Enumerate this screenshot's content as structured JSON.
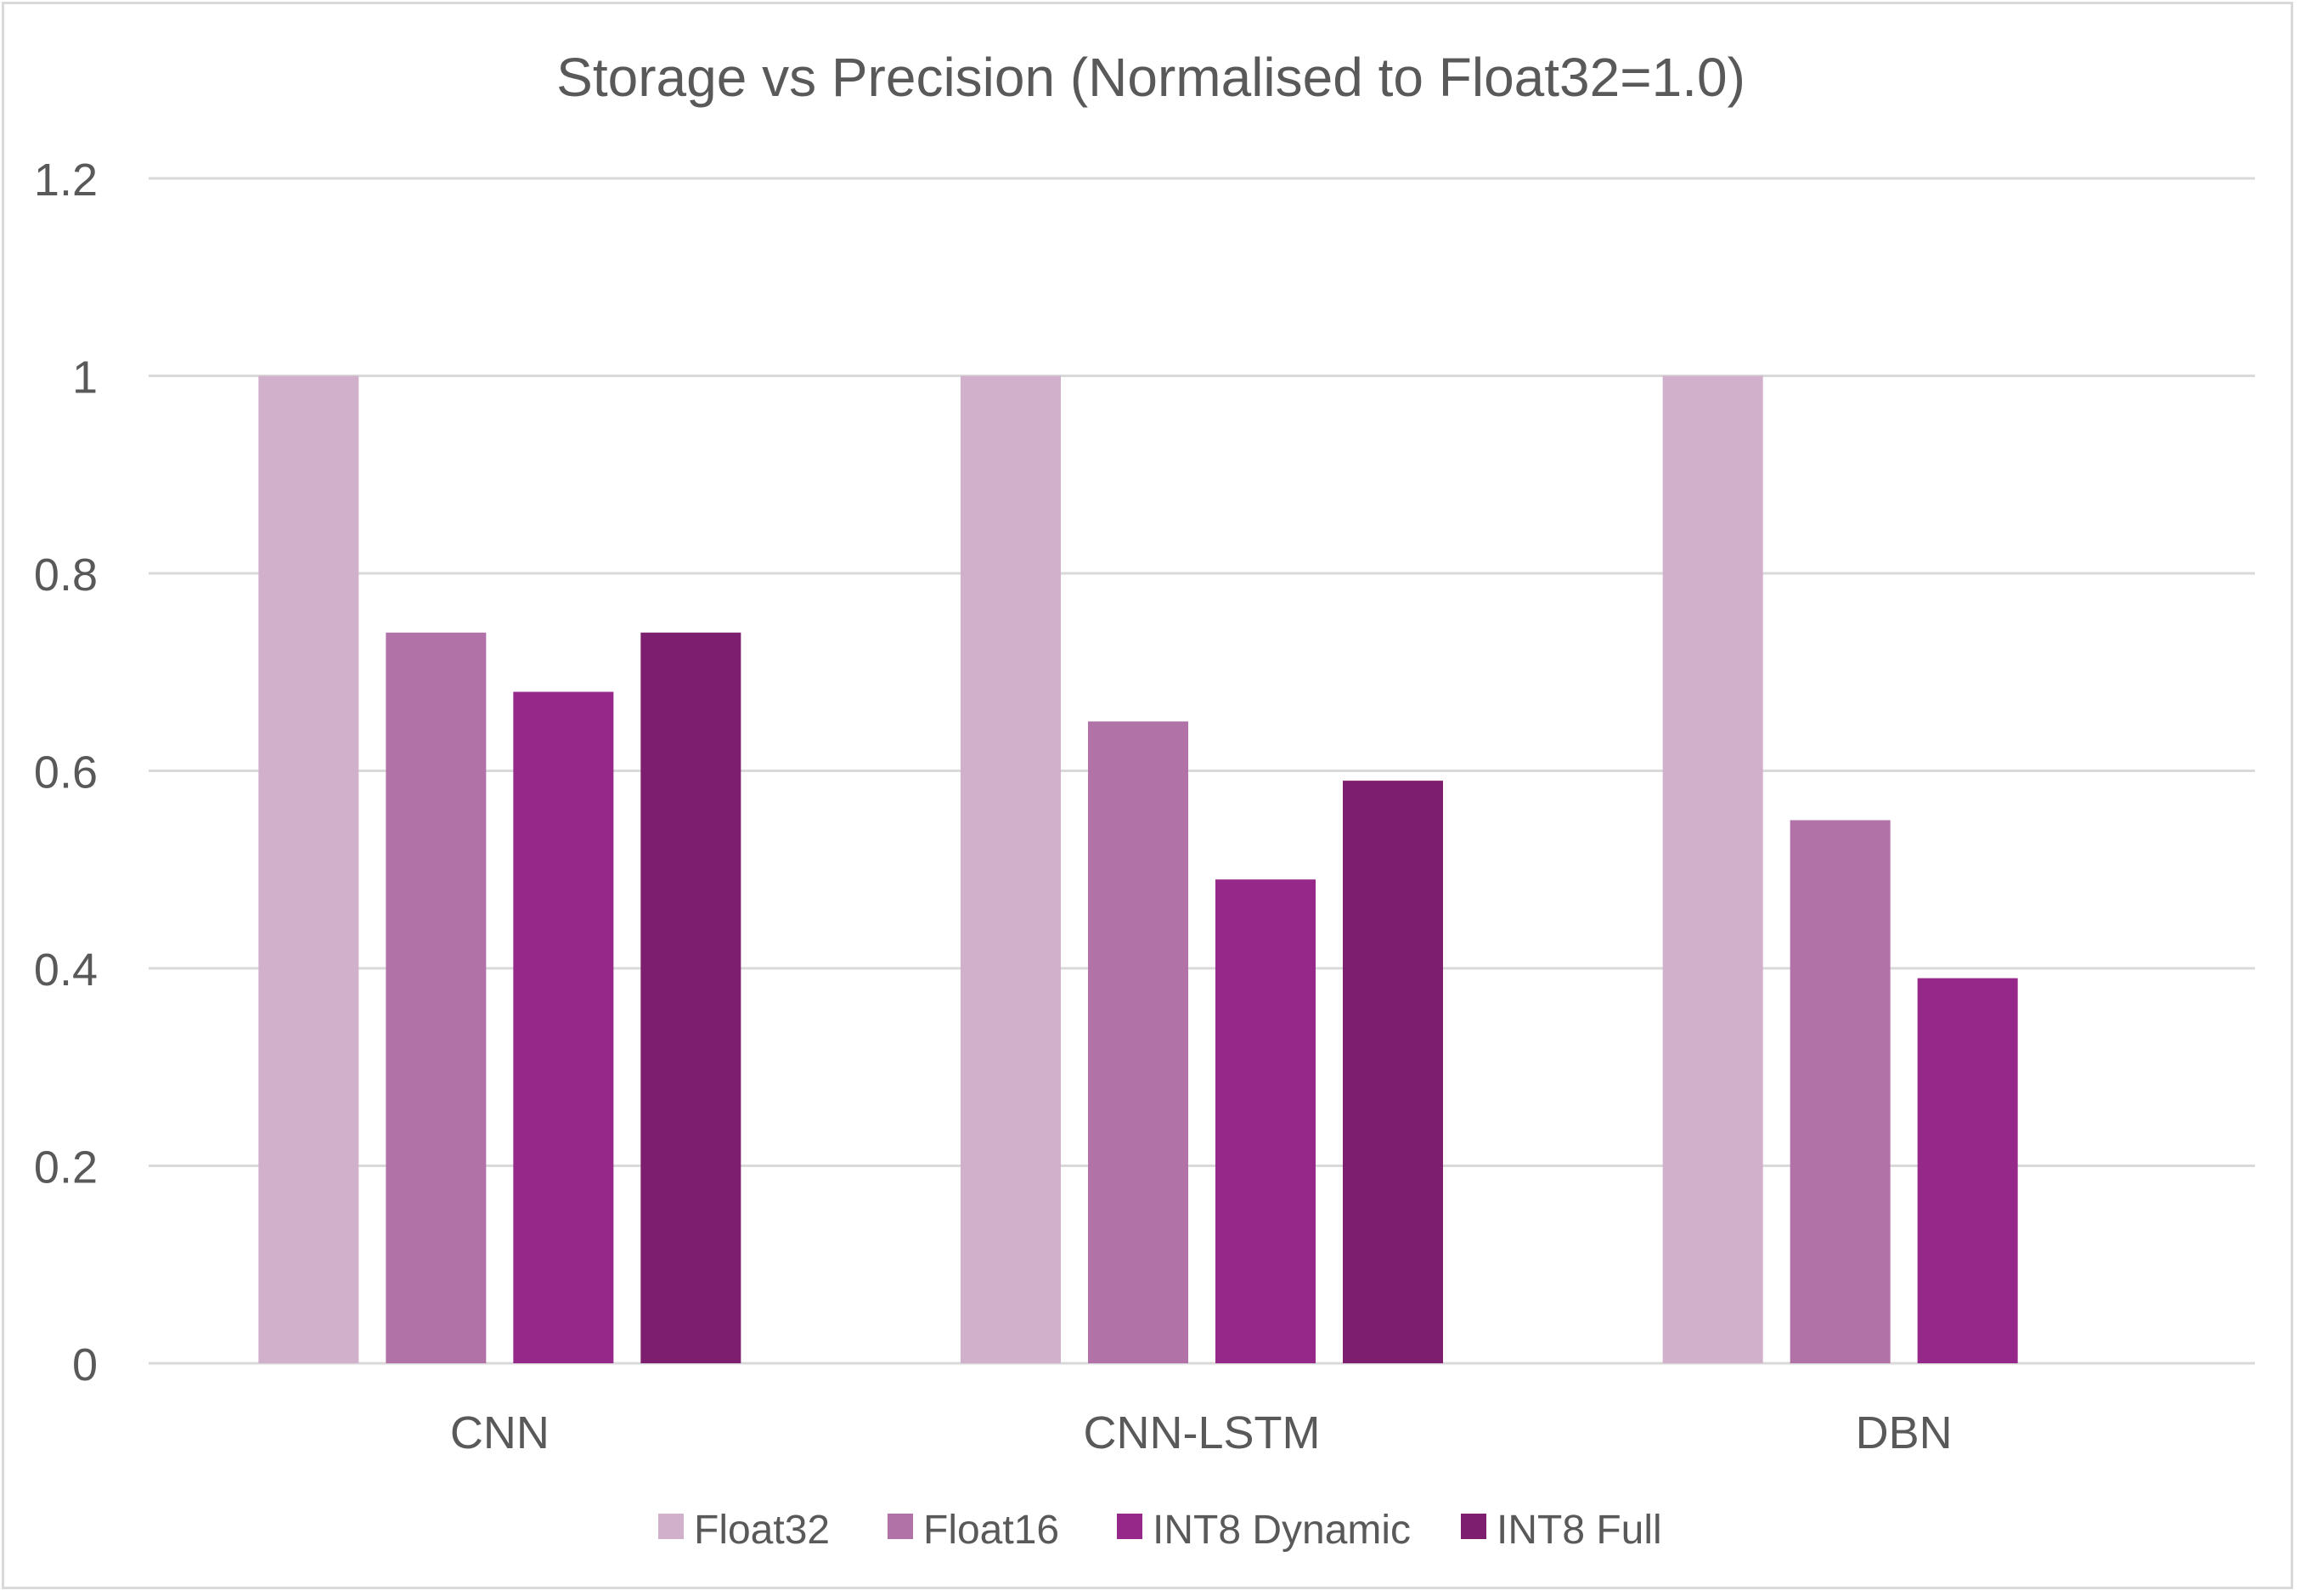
{
  "chart_data": {
    "type": "bar",
    "title": "Storage vs Precision (Normalised to Float32=1.0)",
    "xlabel": "",
    "ylabel": "",
    "categories": [
      "CNN",
      "CNN-LSTM",
      "DBN"
    ],
    "series": [
      {
        "name": "Float32",
        "color": "#d1b0cb",
        "values": [
          1.0,
          1.0,
          1.0
        ]
      },
      {
        "name": "Float16",
        "color": "#b172a8",
        "values": [
          0.74,
          0.65,
          0.55
        ]
      },
      {
        "name": "INT8 Dynamic",
        "color": "#962889",
        "values": [
          0.68,
          0.49,
          0.39
        ]
      },
      {
        "name": "INT8 Full",
        "color": "#7e1e6f",
        "values": [
          0.74,
          0.59,
          null
        ]
      }
    ],
    "ylim": [
      0,
      1.2
    ],
    "yticks": [
      "0",
      "0.2",
      "0.4",
      "0.6",
      "0.8",
      "1",
      "1.2"
    ],
    "ytick_values": [
      0,
      0.2,
      0.4,
      0.6,
      0.8,
      1.0,
      1.2
    ],
    "grid": true,
    "legend_position": "bottom",
    "colors": {
      "gridline": "#d9d9d9",
      "text": "#595959"
    }
  }
}
